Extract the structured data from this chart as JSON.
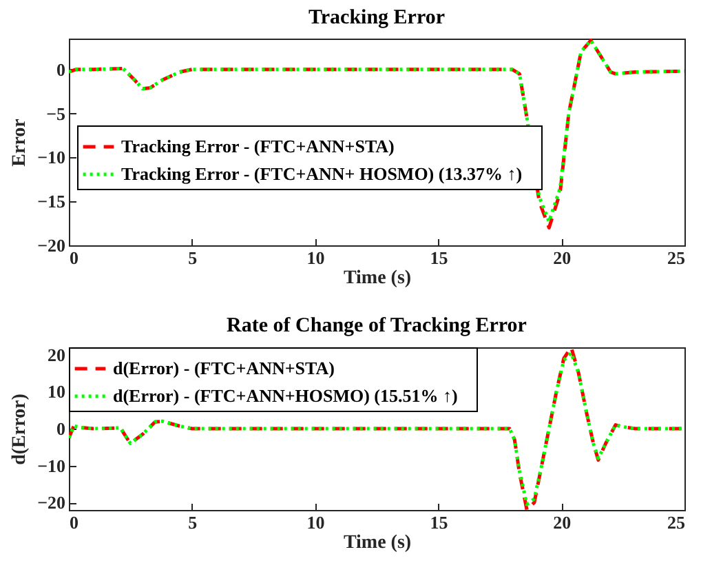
{
  "chart_data": [
    {
      "type": "line",
      "title": "Tracking Error",
      "xlabel": "Time (s)",
      "ylabel": "Error",
      "xlim": [
        0,
        25
      ],
      "xticks": [
        0,
        5,
        10,
        15,
        20,
        25
      ],
      "ylim": [
        -20,
        3.5
      ],
      "yticks": [
        -20,
        -15,
        -10,
        -5,
        0
      ],
      "grid": false,
      "legend": "left",
      "series": [
        {
          "name": "Tracking Error - (FTC+ANN+STA)",
          "color": "#ff0000",
          "line_style": "dashed",
          "x": [
            0,
            0.3,
            1,
            2.2,
            2.6,
            3,
            3.3,
            3.8,
            4.5,
            5,
            18,
            18.3,
            18.6,
            19.1,
            19.5,
            19.95,
            20.3,
            20.8,
            21.2,
            21.6,
            22,
            22.2,
            23,
            25
          ],
          "values": [
            -0.3,
            0,
            0,
            0.1,
            -1,
            -2.2,
            -2.1,
            -1.2,
            -0.3,
            0,
            0,
            -0.5,
            -5.5,
            -15,
            -18,
            -14,
            -5,
            2,
            3.3,
            1.5,
            -0.3,
            -0.5,
            -0.3,
            -0.2
          ]
        },
        {
          "name": "Tracking Error - (FTC+ANN+  HOSMO)   (13.37% ↑)",
          "color": "#00ff00",
          "line_style": "dotted",
          "x": [
            0,
            0.3,
            1,
            2.2,
            2.6,
            3,
            3.3,
            3.8,
            4.5,
            5,
            18,
            18.3,
            18.6,
            19.1,
            19.5,
            19.95,
            20.3,
            20.8,
            21.2,
            21.6,
            22,
            22.2,
            23,
            25
          ],
          "values": [
            -0.3,
            0,
            0,
            0.1,
            -1,
            -2.2,
            -2.1,
            -1.2,
            -0.3,
            0,
            0,
            -0.5,
            -5.5,
            -14.5,
            -17.3,
            -13.5,
            -5,
            2,
            3.3,
            1.5,
            -0.3,
            -0.5,
            -0.3,
            -0.2
          ]
        }
      ]
    },
    {
      "type": "line",
      "title": "Rate of Change of Tracking Error",
      "xlabel": "Time (s)",
      "ylabel": "d(Error)",
      "xlim": [
        0,
        25
      ],
      "xticks": [
        0,
        5,
        10,
        15,
        20,
        25
      ],
      "ylim": [
        -22,
        22
      ],
      "yticks": [
        -20,
        -10,
        0,
        10,
        20
      ],
      "grid": false,
      "legend": "top left",
      "series": [
        {
          "name": "d(Error) - (FTC+ANN+STA)",
          "color": "#ff0000",
          "line_style": "dashed",
          "x": [
            0,
            0.2,
            0.5,
            1,
            2.1,
            2.3,
            2.5,
            3,
            3.5,
            3.8,
            4.5,
            5,
            17.9,
            18.1,
            18.3,
            18.6,
            18.9,
            19.2,
            19.5,
            19.8,
            20.1,
            20.4,
            20.7,
            21,
            21.3,
            21.5,
            21.8,
            22.2,
            22.5,
            23,
            25
          ],
          "values": [
            -2.5,
            0.7,
            0.3,
            0,
            0.2,
            -2,
            -4,
            -1.5,
            1.8,
            2,
            0.7,
            0,
            0,
            -3,
            -12,
            -22,
            -20,
            -10,
            0,
            10,
            19,
            22,
            15,
            5,
            -4,
            -8.5,
            -4,
            1,
            0.5,
            0,
            0
          ]
        },
        {
          "name": "d(Error) - (FTC+ANN+HOSMO)    (15.51% ↑)",
          "color": "#00ff00",
          "line_style": "dotted",
          "x": [
            0,
            0.2,
            0.5,
            1,
            2.1,
            2.3,
            2.5,
            3,
            3.5,
            3.8,
            4.5,
            5,
            17.9,
            18.1,
            18.3,
            18.6,
            18.9,
            19.2,
            19.5,
            19.8,
            20.1,
            20.4,
            20.7,
            21,
            21.3,
            21.5,
            21.8,
            22.2,
            22.5,
            23,
            25
          ],
          "values": [
            -2.5,
            0.7,
            0.3,
            0,
            0.2,
            -2,
            -4,
            -1.5,
            1.8,
            2,
            0.7,
            0,
            0,
            -3,
            -11.5,
            -20.5,
            -19,
            -10,
            0,
            10,
            18.5,
            20.5,
            15,
            5,
            -4,
            -8,
            -4,
            1,
            0.5,
            0,
            0
          ]
        }
      ]
    }
  ]
}
